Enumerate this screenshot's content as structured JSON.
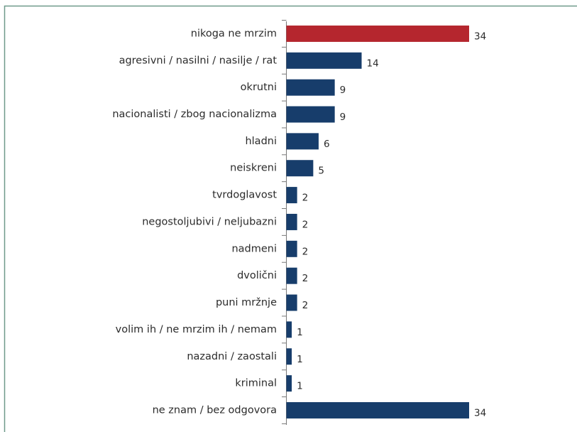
{
  "chart_data": {
    "type": "bar",
    "orientation": "horizontal",
    "categories": [
      "nikoga ne mrzim",
      "agresivni / nasilni / nasilje / rat",
      "okrutni",
      "nacionalisti / zbog nacionalizma",
      "hladni",
      "neiskreni",
      "tvrdoglavost",
      "negostoljubivi / neljubazni",
      "nadmeni",
      "dvolični",
      "puni mržnje",
      "volim ih / ne mrzim ih / nemam",
      "nazadni / zaostali",
      "kriminal",
      "ne znam / bez odgovora"
    ],
    "values": [
      34,
      14,
      9,
      9,
      6,
      5,
      2,
      2,
      2,
      2,
      2,
      1,
      1,
      1,
      34
    ],
    "colors": [
      "#b5262e",
      "#173d6b",
      "#173d6b",
      "#173d6b",
      "#173d6b",
      "#173d6b",
      "#173d6b",
      "#173d6b",
      "#173d6b",
      "#173d6b",
      "#173d6b",
      "#173d6b",
      "#173d6b",
      "#173d6b",
      "#173d6b"
    ]
  }
}
